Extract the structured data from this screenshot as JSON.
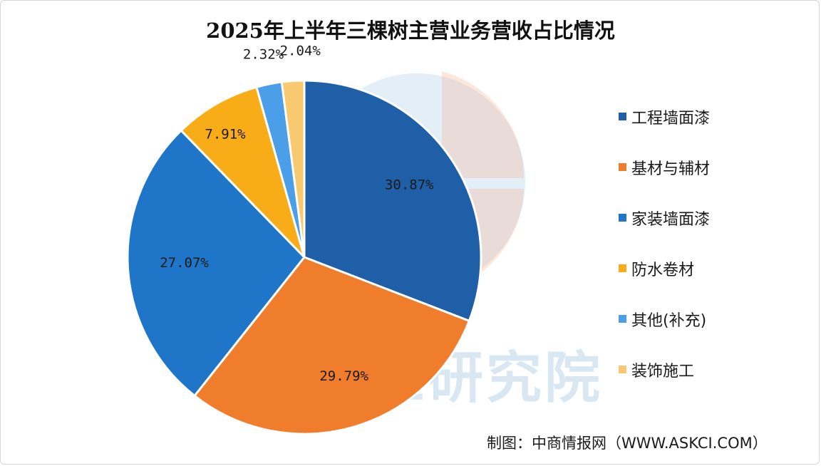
{
  "chart_data": {
    "type": "pie",
    "title": "2025年上半年三棵树主营业务营收占比情况",
    "categories": [
      "工程墙面漆",
      "基材与辅材",
      "家装墙面漆",
      "防水卷材",
      "其他(补充)",
      "装饰施工"
    ],
    "values": [
      30.87,
      29.79,
      27.07,
      7.91,
      2.32,
      2.04
    ],
    "value_labels": [
      "30.87%",
      "29.79%",
      "27.07%",
      "7.91%",
      "2.32%",
      "2.04%"
    ],
    "colors": [
      "#1f5fa8",
      "#f07d2b",
      "#1f76c9",
      "#f8ad18",
      "#4b9ee8",
      "#f9c96f"
    ],
    "legend_position": "right"
  },
  "watermark": {
    "text": "中商产业研究院"
  },
  "source": {
    "text": "制图：中商情报网（WWW.ASKCI.COM）"
  }
}
